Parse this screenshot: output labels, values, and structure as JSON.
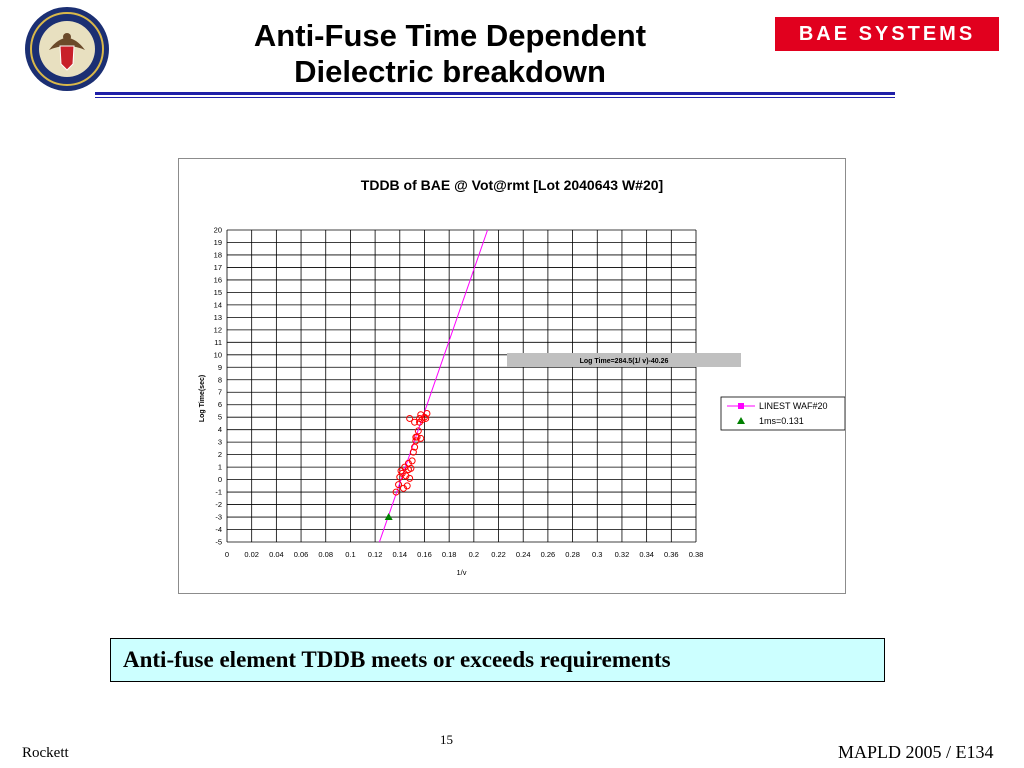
{
  "slide": {
    "title_line1": "Anti-Fuse Time Dependent",
    "title_line2": "Dielectric breakdown",
    "logo_text": "BAE SYSTEMS",
    "callout": "Anti-fuse element TDDB meets or exceeds requirements",
    "page_number": "15",
    "footer_left": "Rockett",
    "footer_right": "MAPLD 2005 / E134",
    "colors": {
      "rule": "#1f1fa8",
      "logo_bg": "#e1001e",
      "callout_bg": "#ccffff"
    }
  },
  "chart_data": {
    "type": "scatter",
    "title": "TDDB of  BAE @ Vot@rmt [Lot 2040643 W#20]",
    "xlabel": "1/v",
    "ylabel": "Log Time(sec)",
    "xlim": [
      0,
      0.38
    ],
    "ylim": [
      -5,
      20
    ],
    "x_ticks": [
      "0",
      "0.02",
      "0.04",
      "0.06",
      "0.08",
      "0.1",
      "0.12",
      "0.14",
      "0.16",
      "0.18",
      "0.2",
      "0.22",
      "0.24",
      "0.26",
      "0.28",
      "0.3",
      "0.32",
      "0.34",
      "0.36",
      "0.38"
    ],
    "y_ticks": [
      "-5",
      "-4",
      "-3",
      "-2",
      "-1",
      "0",
      "1",
      "2",
      "3",
      "4",
      "5",
      "6",
      "7",
      "8",
      "9",
      "10",
      "11",
      "12",
      "13",
      "14",
      "15",
      "16",
      "17",
      "18",
      "19",
      "20"
    ],
    "grid": true,
    "legend_position": "right",
    "fit_equation": "Log Time=284.5(1/ v)-40.26",
    "series": [
      {
        "name": "LINEST WAF#20",
        "kind": "line",
        "color": "#ff00ff",
        "x": [
          0.1235,
          0.2111
        ],
        "y": [
          -5,
          20
        ]
      },
      {
        "name": "",
        "kind": "scatter",
        "marker": "open-circle",
        "color": "#ff0000",
        "x": [
          0.137,
          0.139,
          0.14,
          0.141,
          0.143,
          0.142,
          0.144,
          0.145,
          0.146,
          0.147,
          0.147,
          0.148,
          0.149,
          0.15,
          0.151,
          0.152,
          0.153,
          0.153,
          0.154,
          0.155,
          0.156,
          0.156,
          0.157,
          0.158,
          0.16,
          0.161,
          0.162,
          0.148,
          0.152,
          0.157
        ],
        "y": [
          -1.0,
          -0.4,
          0.2,
          0.7,
          -0.7,
          0.5,
          1.0,
          0.3,
          -0.5,
          0.8,
          1.3,
          0.1,
          0.9,
          1.5,
          2.2,
          2.6,
          3.1,
          3.4,
          3.4,
          3.9,
          4.6,
          4.9,
          5.2,
          4.8,
          5.0,
          4.9,
          5.3,
          4.9,
          4.6,
          3.3
        ]
      },
      {
        "name": "1ms=0.131",
        "kind": "scatter",
        "marker": "triangle",
        "color": "#008000",
        "x": [
          0.131
        ],
        "y": [
          -3.0
        ]
      }
    ]
  }
}
